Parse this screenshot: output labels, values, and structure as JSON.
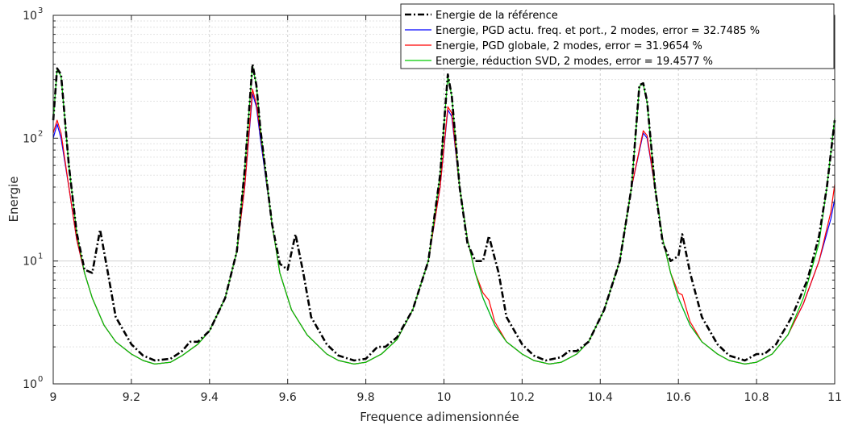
{
  "chart_data": {
    "type": "line",
    "xlabel": "Frequence adimensionnée",
    "ylabel": "Energie",
    "xlim": [
      9,
      11
    ],
    "ylim": [
      1,
      1000
    ],
    "yscale": "log",
    "grid": true,
    "minor_grid": true,
    "legend_position": "top-right",
    "x_ticks": [
      "9",
      "9.2",
      "9.4",
      "9.6",
      "9.8",
      "10",
      "10.2",
      "10.4",
      "10.6",
      "10.8",
      "11"
    ],
    "x_tick_values": [
      9,
      9.2,
      9.4,
      9.6,
      9.8,
      10,
      10.2,
      10.4,
      10.6,
      10.8,
      11
    ],
    "y_ticks": [
      {
        "base": "10",
        "exp": "0",
        "value": 1
      },
      {
        "base": "10",
        "exp": "1",
        "value": 10
      },
      {
        "base": "10",
        "exp": "2",
        "value": 100
      },
      {
        "base": "10",
        "exp": "3",
        "value": 1000
      }
    ],
    "series": [
      {
        "name": "Energie de la référence",
        "color": "#000000",
        "style": "dashdot",
        "points": [
          [
            9.0,
            140
          ],
          [
            9.01,
            370
          ],
          [
            9.02,
            330
          ],
          [
            9.04,
            60
          ],
          [
            9.06,
            17
          ],
          [
            9.08,
            8.5
          ],
          [
            9.1,
            8
          ],
          [
            9.12,
            18
          ],
          [
            9.14,
            8
          ],
          [
            9.16,
            3.5
          ],
          [
            9.2,
            2.1
          ],
          [
            9.23,
            1.7
          ],
          [
            9.26,
            1.55
          ],
          [
            9.3,
            1.6
          ],
          [
            9.33,
            1.85
          ],
          [
            9.35,
            2.2
          ],
          [
            9.37,
            2.2
          ],
          [
            9.4,
            2.7
          ],
          [
            9.44,
            5
          ],
          [
            9.47,
            12
          ],
          [
            9.49,
            55
          ],
          [
            9.51,
            400
          ],
          [
            9.52,
            270
          ],
          [
            9.53,
            120
          ],
          [
            9.56,
            20
          ],
          [
            9.58,
            9.5
          ],
          [
            9.6,
            8.5
          ],
          [
            9.62,
            16.5
          ],
          [
            9.64,
            8
          ],
          [
            9.66,
            3.5
          ],
          [
            9.7,
            2.1
          ],
          [
            9.73,
            1.7
          ],
          [
            9.77,
            1.55
          ],
          [
            9.8,
            1.6
          ],
          [
            9.83,
            2.0
          ],
          [
            9.85,
            2.0
          ],
          [
            9.88,
            2.4
          ],
          [
            9.92,
            4
          ],
          [
            9.96,
            10
          ],
          [
            9.99,
            50
          ],
          [
            10.01,
            330
          ],
          [
            10.02,
            220
          ],
          [
            10.04,
            40
          ],
          [
            10.06,
            14
          ],
          [
            10.08,
            10
          ],
          [
            10.1,
            10
          ],
          [
            10.115,
            16
          ],
          [
            10.14,
            8
          ],
          [
            10.16,
            3.5
          ],
          [
            10.2,
            2.1
          ],
          [
            10.23,
            1.7
          ],
          [
            10.26,
            1.55
          ],
          [
            10.3,
            1.65
          ],
          [
            10.32,
            1.85
          ],
          [
            10.34,
            1.85
          ],
          [
            10.37,
            2.2
          ],
          [
            10.41,
            4
          ],
          [
            10.45,
            10
          ],
          [
            10.48,
            40
          ],
          [
            10.5,
            270
          ],
          [
            10.51,
            280
          ],
          [
            10.52,
            200
          ],
          [
            10.54,
            40
          ],
          [
            10.56,
            14
          ],
          [
            10.58,
            10
          ],
          [
            10.6,
            11
          ],
          [
            10.61,
            16.5
          ],
          [
            10.63,
            8
          ],
          [
            10.66,
            3.5
          ],
          [
            10.7,
            2.1
          ],
          [
            10.73,
            1.7
          ],
          [
            10.77,
            1.55
          ],
          [
            10.8,
            1.75
          ],
          [
            10.82,
            1.75
          ],
          [
            10.85,
            2.1
          ],
          [
            10.89,
            3.5
          ],
          [
            10.93,
            7
          ],
          [
            10.96,
            16
          ],
          [
            10.98,
            40
          ],
          [
            11.0,
            140
          ]
        ]
      },
      {
        "name": "Energie, PGD actu. freq. et port., 2 modes, error = 32.7485 %",
        "color": "#0000ff",
        "style": "solid",
        "points": [
          [
            9.0,
            100
          ],
          [
            9.01,
            130
          ],
          [
            9.02,
            100
          ],
          [
            9.04,
            40
          ],
          [
            9.06,
            15
          ],
          [
            9.08,
            8
          ],
          [
            9.1,
            5
          ],
          [
            9.13,
            3
          ],
          [
            9.16,
            2.2
          ],
          [
            9.2,
            1.75
          ],
          [
            9.23,
            1.55
          ],
          [
            9.26,
            1.45
          ],
          [
            9.3,
            1.5
          ],
          [
            9.33,
            1.7
          ],
          [
            9.37,
            2.1
          ],
          [
            9.4,
            2.7
          ],
          [
            9.44,
            5
          ],
          [
            9.47,
            12
          ],
          [
            9.49,
            40
          ],
          [
            9.51,
            230
          ],
          [
            9.52,
            180
          ],
          [
            9.53,
            100
          ],
          [
            9.56,
            20
          ],
          [
            9.58,
            8
          ],
          [
            9.61,
            4
          ],
          [
            9.65,
            2.5
          ],
          [
            9.7,
            1.75
          ],
          [
            9.73,
            1.55
          ],
          [
            9.77,
            1.45
          ],
          [
            9.8,
            1.5
          ],
          [
            9.84,
            1.75
          ],
          [
            9.88,
            2.3
          ],
          [
            9.92,
            4
          ],
          [
            9.96,
            10
          ],
          [
            9.99,
            40
          ],
          [
            10.01,
            170
          ],
          [
            10.02,
            150
          ],
          [
            10.04,
            40
          ],
          [
            10.06,
            15
          ],
          [
            10.08,
            8
          ],
          [
            10.1,
            5
          ],
          [
            10.13,
            3
          ],
          [
            10.16,
            2.2
          ],
          [
            10.2,
            1.75
          ],
          [
            10.23,
            1.55
          ],
          [
            10.27,
            1.45
          ],
          [
            10.3,
            1.5
          ],
          [
            10.34,
            1.75
          ],
          [
            10.37,
            2.2
          ],
          [
            10.41,
            4
          ],
          [
            10.45,
            10
          ],
          [
            10.48,
            40
          ],
          [
            10.51,
            110
          ],
          [
            10.52,
            100
          ],
          [
            10.54,
            40
          ],
          [
            10.56,
            15
          ],
          [
            10.58,
            8
          ],
          [
            10.6,
            5
          ],
          [
            10.63,
            3
          ],
          [
            10.66,
            2.2
          ],
          [
            10.7,
            1.75
          ],
          [
            10.73,
            1.55
          ],
          [
            10.77,
            1.45
          ],
          [
            10.8,
            1.5
          ],
          [
            10.84,
            1.75
          ],
          [
            10.88,
            2.5
          ],
          [
            10.92,
            4.5
          ],
          [
            10.96,
            10
          ],
          [
            10.99,
            22
          ],
          [
            11.0,
            32
          ]
        ]
      },
      {
        "name": "Energie, PGD globale, 2 modes, error = 31.9654 %",
        "color": "#ff0000",
        "style": "solid",
        "points": [
          [
            9.0,
            110
          ],
          [
            9.01,
            140
          ],
          [
            9.02,
            110
          ],
          [
            9.04,
            40
          ],
          [
            9.06,
            15
          ],
          [
            9.08,
            8
          ],
          [
            9.1,
            5
          ],
          [
            9.13,
            3
          ],
          [
            9.16,
            2.2
          ],
          [
            9.2,
            1.75
          ],
          [
            9.23,
            1.55
          ],
          [
            9.26,
            1.45
          ],
          [
            9.3,
            1.5
          ],
          [
            9.33,
            1.7
          ],
          [
            9.37,
            2.1
          ],
          [
            9.4,
            2.7
          ],
          [
            9.44,
            5
          ],
          [
            9.47,
            12
          ],
          [
            9.49,
            40
          ],
          [
            9.51,
            250
          ],
          [
            9.52,
            190
          ],
          [
            9.53,
            110
          ],
          [
            9.56,
            20
          ],
          [
            9.58,
            8
          ],
          [
            9.61,
            4
          ],
          [
            9.65,
            2.5
          ],
          [
            9.7,
            1.75
          ],
          [
            9.73,
            1.55
          ],
          [
            9.77,
            1.45
          ],
          [
            9.8,
            1.5
          ],
          [
            9.84,
            1.75
          ],
          [
            9.88,
            2.3
          ],
          [
            9.92,
            4
          ],
          [
            9.96,
            10
          ],
          [
            9.99,
            40
          ],
          [
            10.01,
            180
          ],
          [
            10.02,
            160
          ],
          [
            10.04,
            40
          ],
          [
            10.06,
            15
          ],
          [
            10.08,
            8
          ],
          [
            10.1,
            5.5
          ],
          [
            10.115,
            4.8
          ],
          [
            10.13,
            3.2
          ],
          [
            10.16,
            2.2
          ],
          [
            10.2,
            1.75
          ],
          [
            10.23,
            1.55
          ],
          [
            10.27,
            1.45
          ],
          [
            10.3,
            1.5
          ],
          [
            10.34,
            1.75
          ],
          [
            10.37,
            2.2
          ],
          [
            10.41,
            4
          ],
          [
            10.45,
            10
          ],
          [
            10.48,
            40
          ],
          [
            10.51,
            115
          ],
          [
            10.52,
            105
          ],
          [
            10.54,
            40
          ],
          [
            10.56,
            15
          ],
          [
            10.58,
            8
          ],
          [
            10.6,
            5.5
          ],
          [
            10.61,
            5.3
          ],
          [
            10.63,
            3.2
          ],
          [
            10.66,
            2.2
          ],
          [
            10.7,
            1.75
          ],
          [
            10.73,
            1.55
          ],
          [
            10.77,
            1.45
          ],
          [
            10.8,
            1.5
          ],
          [
            10.84,
            1.75
          ],
          [
            10.88,
            2.5
          ],
          [
            10.92,
            4.5
          ],
          [
            10.96,
            10
          ],
          [
            10.99,
            25
          ],
          [
            11.0,
            42
          ]
        ]
      },
      {
        "name": "Energie, réduction SVD, 2 modes, error = 19.4577 %",
        "color": "#00cc00",
        "style": "solid",
        "points": [
          [
            9.0,
            140
          ],
          [
            9.01,
            360
          ],
          [
            9.02,
            320
          ],
          [
            9.04,
            60
          ],
          [
            9.06,
            17
          ],
          [
            9.08,
            8
          ],
          [
            9.1,
            5
          ],
          [
            9.13,
            3
          ],
          [
            9.16,
            2.2
          ],
          [
            9.2,
            1.75
          ],
          [
            9.23,
            1.55
          ],
          [
            9.26,
            1.45
          ],
          [
            9.3,
            1.5
          ],
          [
            9.33,
            1.7
          ],
          [
            9.37,
            2.1
          ],
          [
            9.4,
            2.7
          ],
          [
            9.44,
            5
          ],
          [
            9.47,
            12
          ],
          [
            9.49,
            55
          ],
          [
            9.51,
            390
          ],
          [
            9.52,
            270
          ],
          [
            9.53,
            120
          ],
          [
            9.56,
            20
          ],
          [
            9.58,
            8
          ],
          [
            9.61,
            4
          ],
          [
            9.65,
            2.5
          ],
          [
            9.7,
            1.75
          ],
          [
            9.73,
            1.55
          ],
          [
            9.77,
            1.45
          ],
          [
            9.8,
            1.5
          ],
          [
            9.84,
            1.75
          ],
          [
            9.88,
            2.3
          ],
          [
            9.92,
            4
          ],
          [
            9.96,
            10
          ],
          [
            9.99,
            50
          ],
          [
            10.01,
            320
          ],
          [
            10.02,
            220
          ],
          [
            10.04,
            40
          ],
          [
            10.06,
            15
          ],
          [
            10.08,
            8
          ],
          [
            10.1,
            5
          ],
          [
            10.13,
            3
          ],
          [
            10.16,
            2.2
          ],
          [
            10.2,
            1.75
          ],
          [
            10.23,
            1.55
          ],
          [
            10.27,
            1.45
          ],
          [
            10.3,
            1.5
          ],
          [
            10.34,
            1.75
          ],
          [
            10.37,
            2.2
          ],
          [
            10.41,
            4
          ],
          [
            10.45,
            10
          ],
          [
            10.48,
            40
          ],
          [
            10.5,
            265
          ],
          [
            10.51,
            275
          ],
          [
            10.52,
            195
          ],
          [
            10.54,
            40
          ],
          [
            10.56,
            15
          ],
          [
            10.58,
            8
          ],
          [
            10.6,
            5
          ],
          [
            10.63,
            3
          ],
          [
            10.66,
            2.2
          ],
          [
            10.7,
            1.75
          ],
          [
            10.73,
            1.55
          ],
          [
            10.77,
            1.45
          ],
          [
            10.8,
            1.5
          ],
          [
            10.84,
            1.75
          ],
          [
            10.88,
            2.5
          ],
          [
            10.92,
            5
          ],
          [
            10.96,
            14
          ],
          [
            10.98,
            40
          ],
          [
            11.0,
            145
          ]
        ]
      }
    ]
  }
}
